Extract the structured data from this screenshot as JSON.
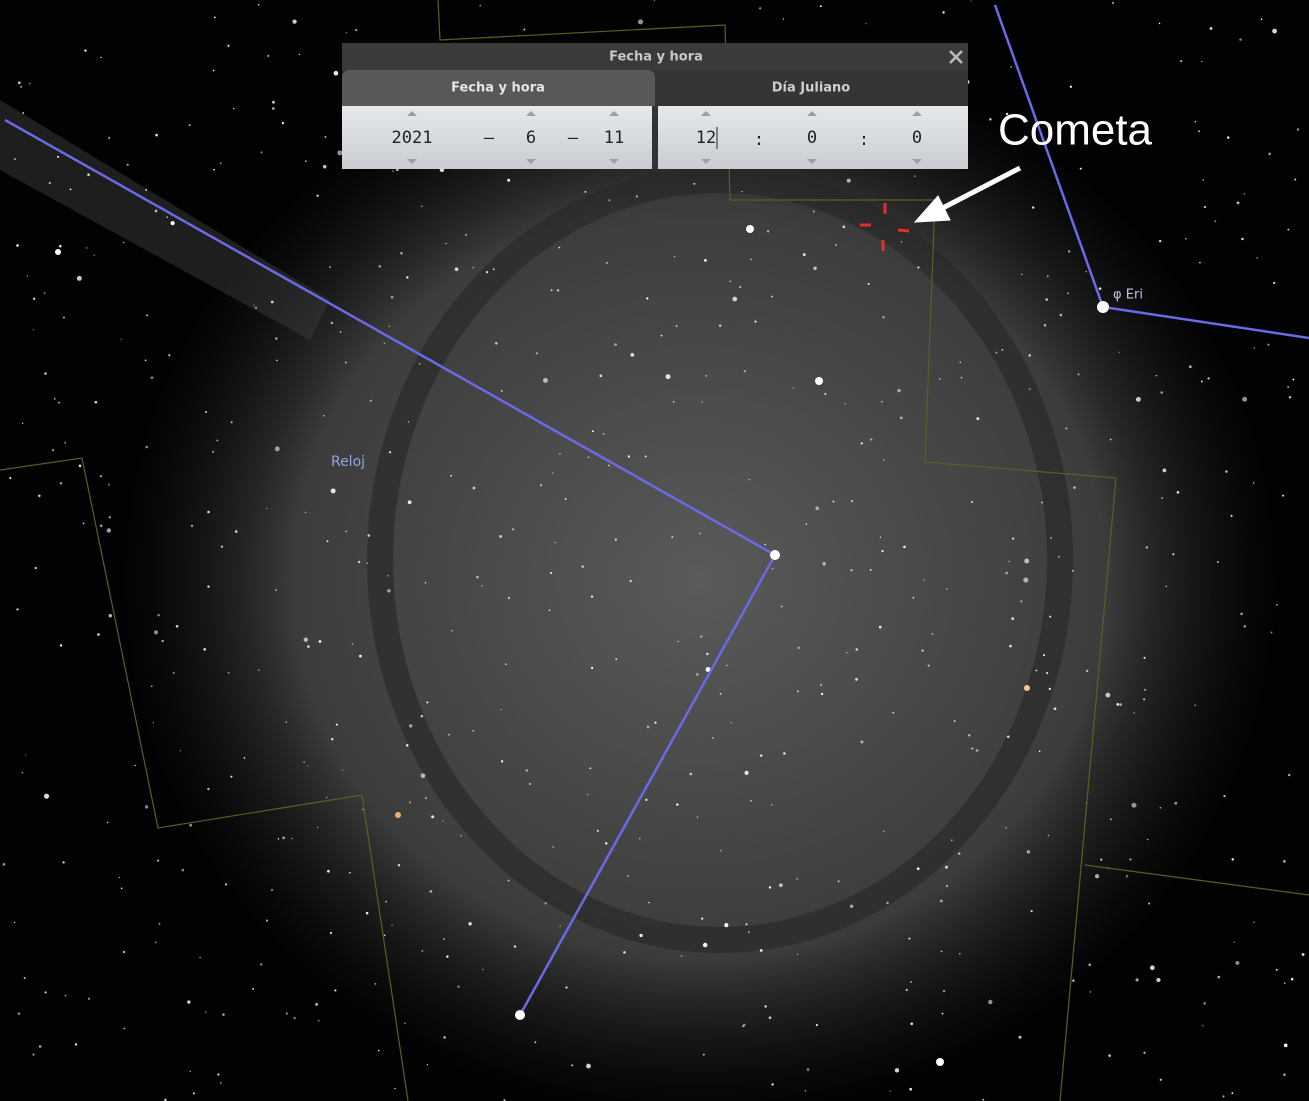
{
  "dialog": {
    "title": "Fecha y hora",
    "tabs": [
      "Fecha y hora",
      "Día Juliano"
    ],
    "date": {
      "year": "2021",
      "month": "6",
      "day": "11",
      "separator": "–"
    },
    "time": {
      "hour": "12",
      "minute": "0",
      "second": "0",
      "separator": ":"
    }
  },
  "labels": {
    "annotation": "Cometa",
    "constellation": "Reloj",
    "star": "φ Eri"
  }
}
